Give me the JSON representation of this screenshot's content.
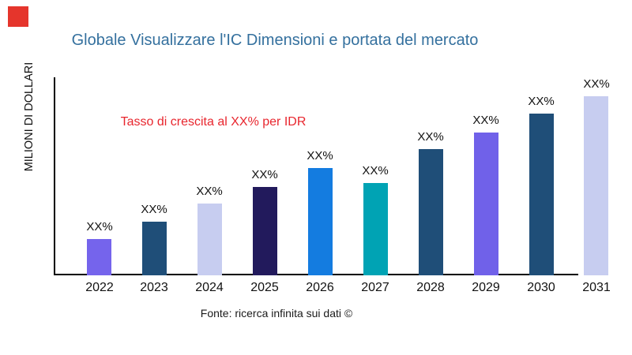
{
  "brand": {
    "logo_mark_color": "#e5352c"
  },
  "header": {
    "title": "Globale Visualizzare l'IC Dimensioni e portata del mercato",
    "title_color": "#34709e"
  },
  "annotation": {
    "text": "Tasso di crescita al XX% per IDR",
    "color": "#e8262e"
  },
  "footer": {
    "source_text": "Fonte: ricerca infinita sui dati ©"
  },
  "chart_data": {
    "type": "bar",
    "title": "Globale Visualizzare l'IC Dimensioni e portata del mercato",
    "xlabel": "",
    "ylabel": "MILIONI DI DOLLARI",
    "categories": [
      "2022",
      "2023",
      "2024",
      "2025",
      "2026",
      "2027",
      "2028",
      "2029",
      "2030",
      "2031"
    ],
    "bar_value_labels": [
      "XX%",
      "XX%",
      "XX%",
      "XX%",
      "XX%",
      "XX%",
      "XX%",
      "XX%",
      "XX%",
      "XX%"
    ],
    "values_relative_height": [
      46,
      68,
      91,
      112,
      136,
      117,
      160,
      181,
      205,
      227
    ],
    "bar_colors": [
      "#7564ec",
      "#1f4e78",
      "#c7cdf0",
      "#221a5c",
      "#147ce0",
      "#00a3b4",
      "#1f4e78",
      "#7061e9",
      "#1f4e78",
      "#c7cdf0"
    ],
    "axis_color": "#000000",
    "grid": "off",
    "legend": "none"
  }
}
